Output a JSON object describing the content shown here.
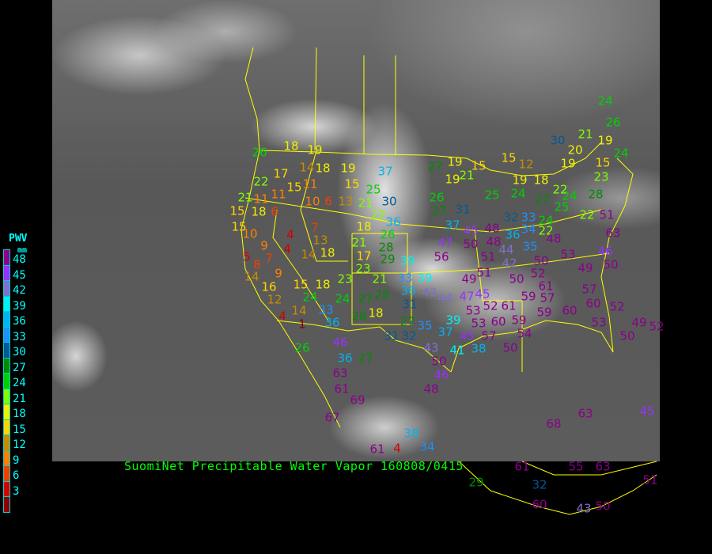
{
  "title": "SuomiNet Precipitable Water Vapor 160808/0415",
  "legend": {
    "title": "PWV",
    "unit": "mm",
    "ticks": [
      "48",
      "45",
      "42",
      "39",
      "36",
      "33",
      "30",
      "27",
      "24",
      "21",
      "18",
      "15",
      "12",
      "9",
      "6",
      "3"
    ],
    "colors": [
      "#8c008c",
      "#9b30ff",
      "#8070d0",
      "#00f0f0",
      "#00b4f0",
      "#1e90ff",
      "#005a96",
      "#008c00",
      "#00d200",
      "#80ff00",
      "#f0f000",
      "#ffd700",
      "#c88c00",
      "#ff8000",
      "#f04000",
      "#d20000",
      "#8c0000"
    ]
  },
  "stations": [
    26,
    18,
    19,
    14,
    18,
    19,
    37,
    22,
    17,
    15,
    11,
    11,
    15,
    25,
    21,
    11,
    10,
    6,
    13,
    21,
    30,
    15,
    18,
    6,
    22,
    15,
    18,
    36,
    7,
    26,
    10,
    4,
    9,
    13,
    21,
    28,
    7,
    4,
    5,
    14,
    18,
    17,
    29,
    39,
    8,
    23,
    14,
    9,
    21,
    33,
    39,
    23,
    16,
    15,
    18,
    36,
    43,
    12,
    24,
    24,
    27,
    28,
    31,
    14,
    33,
    36,
    18,
    28,
    4,
    1,
    20,
    24,
    19,
    15,
    15,
    12,
    19,
    21,
    19,
    23,
    19,
    18,
    27,
    26,
    25,
    24,
    22,
    27,
    24,
    28,
    27,
    31,
    25,
    24,
    22,
    51,
    32,
    33,
    37,
    34,
    45,
    48,
    36,
    22,
    63,
    48,
    48,
    47,
    50,
    44,
    35,
    46,
    56,
    51,
    42,
    53,
    50,
    49,
    50,
    52,
    51,
    49,
    50,
    61,
    57,
    59,
    45,
    47,
    44,
    57,
    60,
    52,
    52,
    61,
    53,
    59,
    60,
    60,
    39,
    59,
    53,
    53,
    45,
    57,
    54,
    50,
    38,
    37,
    24,
    26,
    21,
    19,
    30,
    15,
    27,
    35,
    31,
    32,
    43,
    41,
    50,
    46,
    48,
    46,
    36,
    27,
    26,
    63,
    61,
    69,
    67,
    68,
    63,
    45,
    38,
    34,
    4,
    61,
    61,
    29,
    32,
    60,
    43,
    50,
    51,
    55,
    63,
    50,
    49,
    52
  ]
}
